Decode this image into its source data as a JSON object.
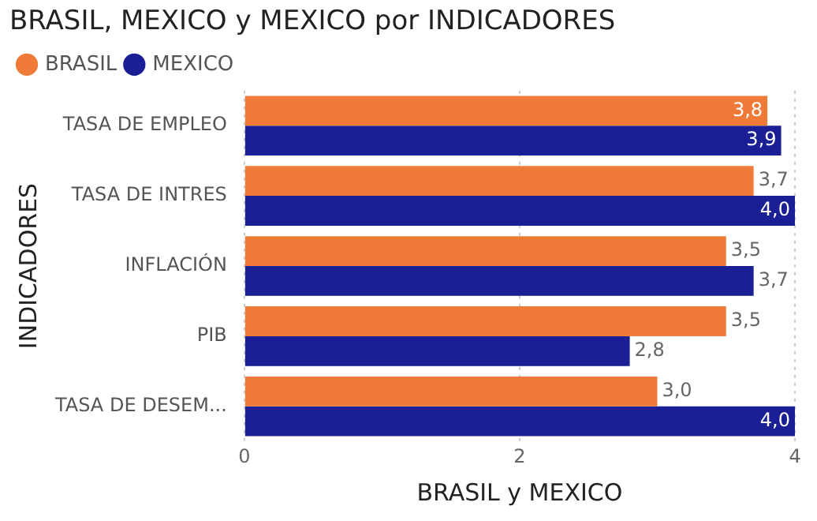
{
  "chart_data": {
    "type": "bar",
    "orientation": "horizontal",
    "title": "BRASIL, MEXICO y MEXICO por INDICADORES",
    "xlabel": "BRASIL y MEXICO",
    "ylabel": "INDICADORES",
    "categories": [
      "TASA DE EMPLEO",
      "TASA DE INTRES",
      "INFLACIÓN",
      "PIB",
      "TASA DE DESEM..."
    ],
    "series": [
      {
        "name": "BRASIL",
        "color": "#f07b38",
        "values": [
          3.8,
          3.7,
          3.5,
          3.5,
          3.0
        ],
        "value_labels": [
          "3,8",
          "3,7",
          "3,5",
          "3,5",
          "3,0"
        ]
      },
      {
        "name": "MEXICO",
        "color": "#1a1f96",
        "values": [
          3.9,
          4.0,
          3.7,
          2.8,
          4.0
        ],
        "value_labels": [
          "3,9",
          "4,0",
          "3,7",
          "2,8",
          "4,0"
        ]
      }
    ],
    "xlim": [
      0,
      4
    ],
    "xticks": [
      0,
      2,
      4
    ],
    "grid": "x",
    "legend": "top left"
  }
}
